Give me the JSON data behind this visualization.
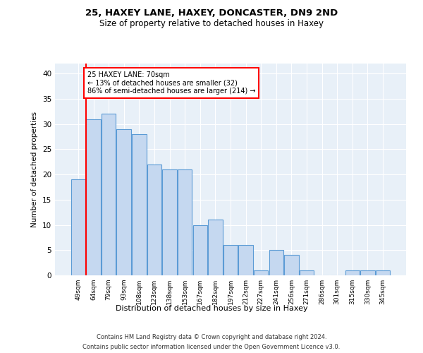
{
  "title1": "25, HAXEY LANE, HAXEY, DONCASTER, DN9 2ND",
  "title2": "Size of property relative to detached houses in Haxey",
  "xlabel": "Distribution of detached houses by size in Haxey",
  "ylabel": "Number of detached properties",
  "categories": [
    "49sqm",
    "64sqm",
    "79sqm",
    "93sqm",
    "108sqm",
    "123sqm",
    "138sqm",
    "153sqm",
    "167sqm",
    "182sqm",
    "197sqm",
    "212sqm",
    "227sqm",
    "241sqm",
    "256sqm",
    "271sqm",
    "286sqm",
    "301sqm",
    "315sqm",
    "330sqm",
    "345sqm"
  ],
  "values": [
    19,
    31,
    32,
    29,
    28,
    22,
    21,
    21,
    10,
    11,
    6,
    6,
    1,
    5,
    4,
    1,
    0,
    0,
    1,
    1,
    1
  ],
  "bar_color": "#c5d8f0",
  "bar_edge_color": "#5b9bd5",
  "vline_x_bar_index": 1,
  "annotation_text": "25 HAXEY LANE: 70sqm\n← 13% of detached houses are smaller (32)\n86% of semi-detached houses are larger (214) →",
  "annotation_box_color": "white",
  "annotation_box_edge_color": "red",
  "vline_color": "red",
  "ylim": [
    0,
    42
  ],
  "yticks": [
    0,
    5,
    10,
    15,
    20,
    25,
    30,
    35,
    40
  ],
  "background_color": "#e8f0f8",
  "footer1": "Contains HM Land Registry data © Crown copyright and database right 2024.",
  "footer2": "Contains public sector information licensed under the Open Government Licence v3.0."
}
